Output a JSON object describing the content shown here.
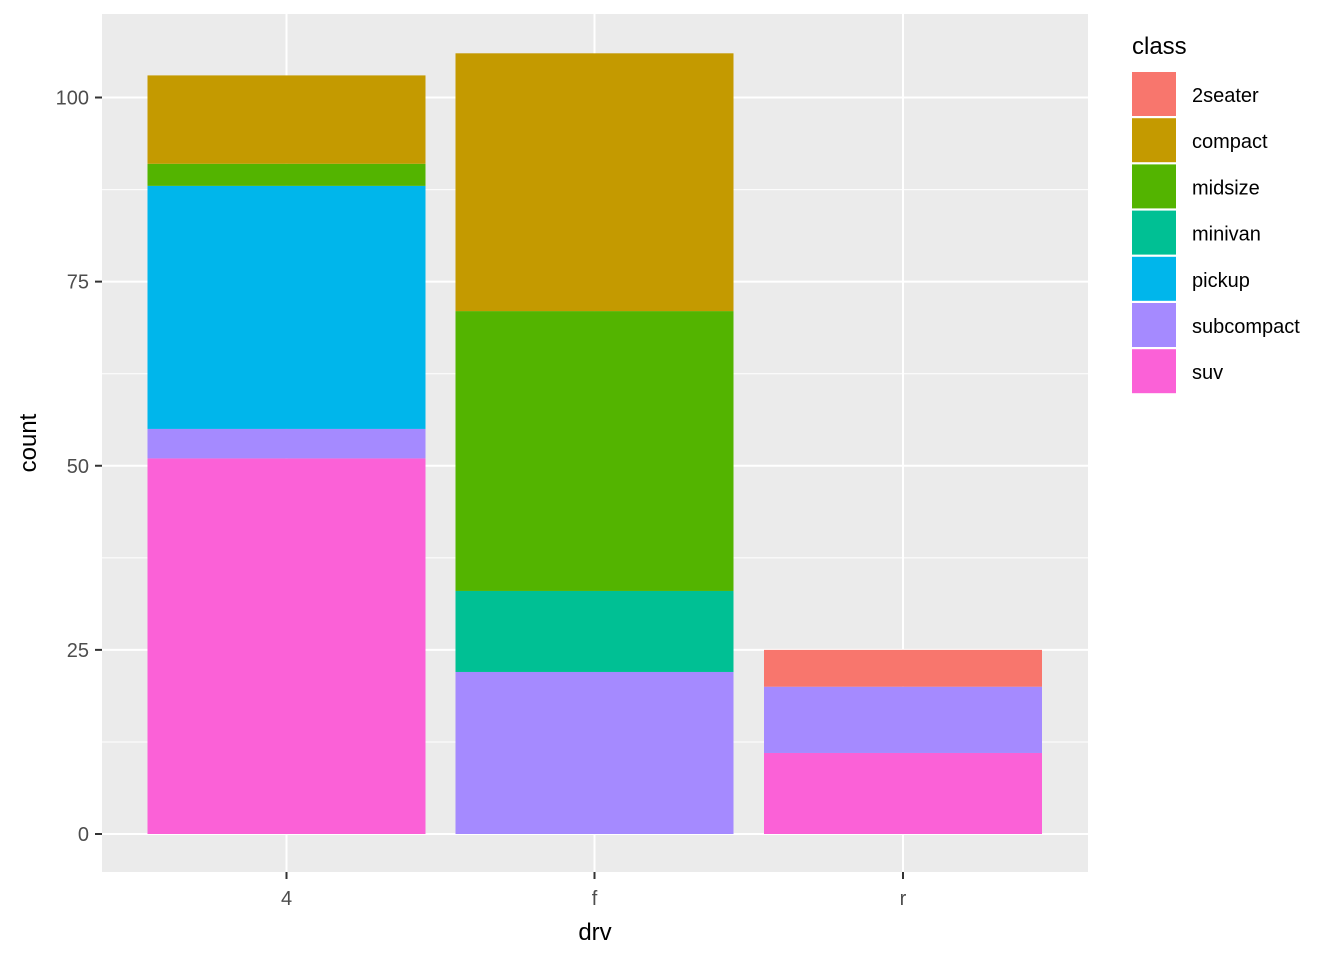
{
  "chart_data": {
    "type": "bar",
    "stacked": true,
    "xlabel": "drv",
    "ylabel": "count",
    "categories": [
      "4",
      "f",
      "r"
    ],
    "ylim": [
      0,
      110
    ],
    "yticks": [
      0,
      25,
      50,
      75,
      100
    ],
    "grid": true,
    "legend_title": "class",
    "legend_position": "right",
    "series": [
      {
        "name": "2seater",
        "color": "#F8766D",
        "values": [
          0,
          0,
          5
        ]
      },
      {
        "name": "compact",
        "color": "#C49A00",
        "values": [
          12,
          35,
          0
        ]
      },
      {
        "name": "midsize",
        "color": "#53B400",
        "values": [
          3,
          38,
          0
        ]
      },
      {
        "name": "minivan",
        "color": "#00C094",
        "values": [
          0,
          11,
          0
        ]
      },
      {
        "name": "pickup",
        "color": "#00B6EB",
        "values": [
          33,
          0,
          0
        ]
      },
      {
        "name": "subcompact",
        "color": "#A58AFF",
        "values": [
          4,
          22,
          9
        ]
      },
      {
        "name": "suv",
        "color": "#FB61D7",
        "values": [
          51,
          0,
          11
        ]
      }
    ]
  }
}
